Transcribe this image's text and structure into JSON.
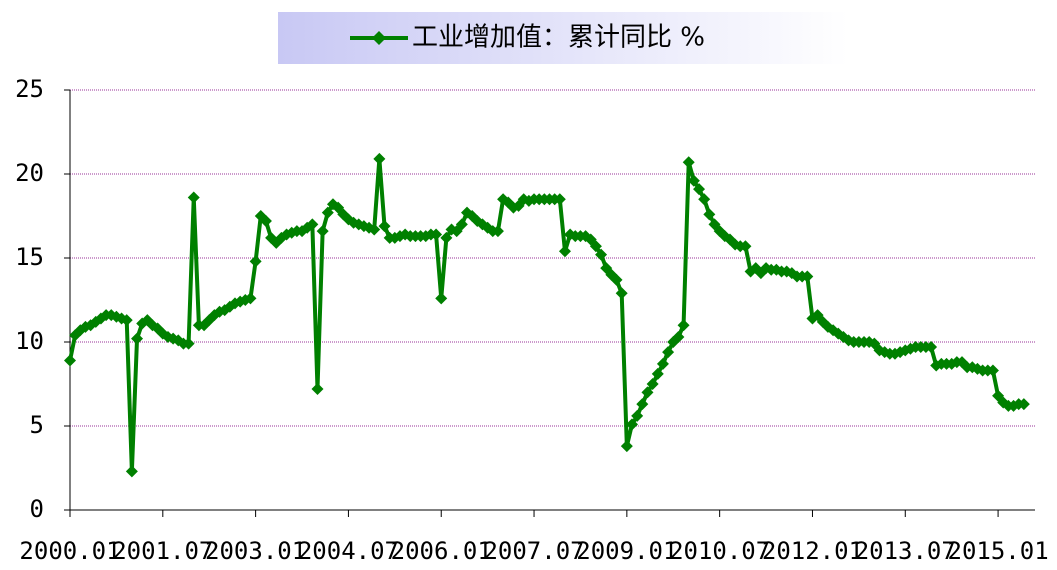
{
  "chart_data": {
    "type": "line",
    "categories": [
      "2000.01",
      null,
      null,
      null,
      null,
      null,
      null,
      null,
      null,
      null,
      null,
      null,
      null,
      null,
      null,
      null,
      null,
      null,
      "2001.07",
      null,
      null,
      null,
      null,
      null,
      null,
      null,
      null,
      null,
      null,
      null,
      null,
      null,
      null,
      null,
      null,
      null,
      "2003.01",
      null,
      null,
      null,
      null,
      null,
      null,
      null,
      null,
      null,
      null,
      null,
      null,
      null,
      null,
      null,
      null,
      null,
      "2004.07",
      null,
      null,
      null,
      null,
      null,
      null,
      null,
      null,
      null,
      null,
      null,
      null,
      null,
      null,
      null,
      null,
      null,
      "2006.01",
      null,
      null,
      null,
      null,
      null,
      null,
      null,
      null,
      null,
      null,
      null,
      null,
      null,
      null,
      null,
      null,
      null,
      "2007.07",
      null,
      null,
      null,
      null,
      null,
      null,
      null,
      null,
      null,
      null,
      null,
      null,
      null,
      null,
      null,
      null,
      null,
      "2009.01",
      null,
      null,
      null,
      null,
      null,
      null,
      null,
      null,
      null,
      null,
      null,
      null,
      null,
      null,
      null,
      null,
      null,
      "2010.07",
      null,
      null,
      null,
      null,
      null,
      null,
      null,
      null,
      null,
      null,
      null,
      null,
      null,
      null,
      null,
      null,
      null,
      "2012.01",
      null,
      null,
      null,
      null,
      null,
      null,
      null,
      null,
      null,
      null,
      null,
      null,
      null,
      null,
      null,
      null,
      null,
      "2013.07",
      null,
      null,
      null,
      null,
      null,
      null,
      null,
      null,
      null,
      null,
      null,
      null,
      null,
      null,
      null,
      null,
      null,
      "2015.01",
      null,
      null,
      null,
      null,
      null
    ],
    "series": [
      {
        "name": "工业增加值：累计同比 %",
        "color": "#008000",
        "values": [
          8.9,
          10.4,
          10.7,
          10.9,
          11.0,
          11.2,
          11.4,
          11.6,
          11.6,
          11.5,
          11.4,
          11.3,
          2.3,
          10.2,
          11.1,
          11.3,
          11.0,
          10.8,
          10.5,
          10.3,
          10.2,
          10.1,
          9.9,
          9.9,
          18.6,
          11.0,
          11.0,
          11.3,
          11.6,
          11.8,
          11.9,
          12.1,
          12.3,
          12.4,
          12.5,
          12.6,
          14.8,
          17.5,
          17.2,
          16.2,
          15.9,
          16.2,
          16.4,
          16.5,
          16.6,
          16.6,
          16.8,
          17.0,
          7.2,
          16.6,
          17.7,
          18.2,
          18.0,
          17.6,
          17.3,
          17.1,
          17.0,
          16.9,
          16.8,
          16.7,
          20.9,
          16.9,
          16.2,
          16.2,
          16.3,
          16.4,
          16.3,
          16.3,
          16.3,
          16.3,
          16.4,
          16.4,
          12.6,
          16.2,
          16.7,
          16.6,
          17.0,
          17.7,
          17.5,
          17.2,
          17.0,
          16.8,
          16.6,
          16.6,
          18.5,
          18.3,
          18.0,
          18.1,
          18.5,
          18.4,
          18.5,
          18.5,
          18.5,
          18.5,
          18.5,
          18.5,
          15.4,
          16.4,
          16.3,
          16.3,
          16.3,
          16.1,
          15.7,
          15.2,
          14.4,
          14.0,
          13.7,
          12.9,
          3.8,
          5.1,
          5.6,
          6.3,
          7.0,
          7.5,
          8.1,
          8.7,
          9.4,
          10.0,
          10.3,
          11.0,
          20.7,
          19.6,
          19.1,
          18.5,
          17.6,
          17.0,
          16.6,
          16.3,
          16.1,
          15.8,
          15.7,
          15.7,
          14.2,
          14.4,
          14.1,
          14.4,
          14.3,
          14.3,
          14.2,
          14.2,
          14.1,
          13.9,
          13.9,
          13.9,
          11.4,
          11.6,
          11.2,
          10.9,
          10.7,
          10.5,
          10.3,
          10.1,
          10.0,
          10.0,
          10.0,
          10.0,
          9.9,
          9.5,
          9.4,
          9.3,
          9.3,
          9.4,
          9.5,
          9.6,
          9.7,
          9.7,
          9.7,
          9.7,
          8.6,
          8.7,
          8.7,
          8.7,
          8.8,
          8.8,
          8.5,
          8.5,
          8.4,
          8.3,
          8.3,
          8.3,
          6.8,
          6.4,
          6.2,
          6.2,
          6.3,
          6.3
        ]
      }
    ],
    "ylim": [
      0,
      25
    ],
    "yticks": [
      0,
      5,
      10,
      15,
      20,
      25
    ],
    "grid": true,
    "legend": "top"
  }
}
